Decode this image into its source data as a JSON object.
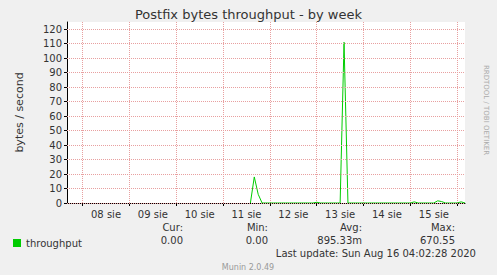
{
  "chart_data": {
    "type": "line",
    "title": "Postfix bytes throughput - by week",
    "y_label": "bytes / second",
    "categories": [
      null,
      null,
      null,
      null,
      null,
      null,
      null,
      null,
      null,
      null,
      "08 sie",
      null,
      null,
      null,
      null,
      null,
      null,
      null,
      null,
      null,
      null,
      null,
      "09 sie",
      null,
      null,
      null,
      null,
      null,
      null,
      null,
      null,
      null,
      null,
      null,
      "10 sie",
      null,
      null,
      null,
      null,
      null,
      null,
      null,
      null,
      null,
      null,
      null,
      "11 sie",
      null,
      null,
      null,
      null,
      null,
      null,
      null,
      null,
      null,
      null,
      null,
      "12 sie",
      null,
      null,
      null,
      null,
      null,
      null,
      null,
      null,
      null,
      null,
      null,
      "13 sie",
      null,
      null,
      null,
      null,
      null,
      null,
      null,
      null,
      null,
      null,
      null,
      "14 sie",
      null,
      null,
      null,
      null,
      null,
      null,
      null,
      null,
      null,
      null,
      null,
      "15 sie",
      null,
      null,
      null,
      null,
      null,
      null,
      null,
      null
    ],
    "series": [
      {
        "name": "throughput",
        "color": "#00cc00",
        "values": [
          null,
          null,
          null,
          null,
          null,
          null,
          null,
          null,
          null,
          null,
          null,
          null,
          null,
          null,
          null,
          null,
          null,
          null,
          null,
          null,
          null,
          null,
          null,
          null,
          null,
          null,
          null,
          null,
          null,
          null,
          null,
          null,
          null,
          null,
          null,
          null,
          null,
          null,
          null,
          null,
          null,
          null,
          null,
          null,
          null,
          null,
          null,
          0,
          18,
          6,
          0,
          0,
          0,
          0,
          0,
          0,
          0,
          0,
          0,
          0,
          0,
          0,
          0,
          0,
          0.5,
          0,
          0,
          0,
          0,
          0,
          0,
          111,
          0,
          0,
          0,
          0,
          0,
          0,
          0,
          0,
          0,
          0,
          0,
          0,
          0,
          0,
          0,
          0,
          0,
          0.8,
          0,
          0,
          0,
          0,
          0,
          1.5,
          1,
          0,
          0,
          0,
          0,
          0.8,
          0
        ],
        "stats": [
          {
            "name": "Cur:",
            "value": 0,
            "label": "0.00"
          },
          {
            "name": "Min:",
            "value": 0,
            "label": "0.00"
          },
          {
            "name": "Avg:",
            "value": 0.89533,
            "label": "895.33m"
          },
          {
            "name": "Max:",
            "value": 670.55,
            "label": "670.55"
          }
        ]
      }
    ],
    "ylim": [
      0,
      125
    ],
    "yticks": [
      0,
      10,
      20,
      30,
      40,
      50,
      60,
      70,
      80,
      90,
      100,
      110,
      120
    ],
    "grid": true,
    "legend": "bottom",
    "annotations": [
      "Last update: Sun Aug 16 04:02:28 2020",
      "Munin 2.0.49",
      "RRDTOOL / TOBI OETIKER"
    ]
  }
}
